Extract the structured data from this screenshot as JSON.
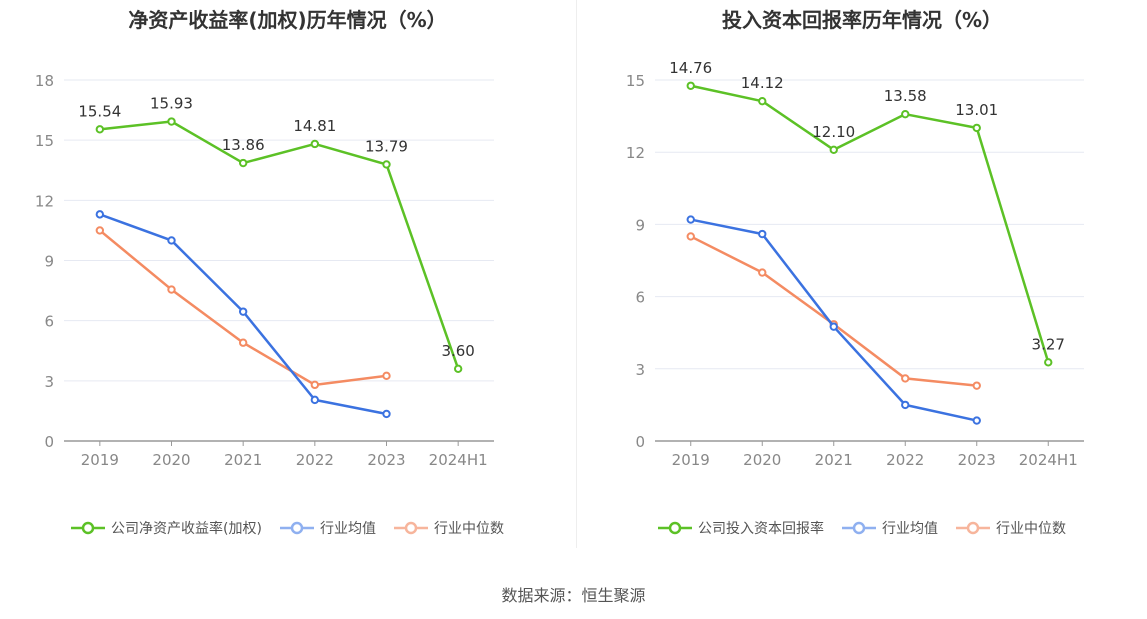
{
  "source_text": "数据来源：恒生聚源",
  "charts": [
    {
      "title": "净资产收益率(加权)历年情况（%）",
      "legend": [
        "公司净资产收益率(加权)",
        "行业均值",
        "行业中位数"
      ]
    },
    {
      "title": "投入资本回报率历年情况（%）",
      "legend": [
        "公司投入资本回报率",
        "行业均值",
        "行业中位数"
      ]
    }
  ],
  "chart_data": [
    {
      "type": "line",
      "title": "净资产收益率(加权)历年情况（%）",
      "categories": [
        "2019",
        "2020",
        "2021",
        "2022",
        "2023",
        "2024H1"
      ],
      "ylim": [
        0,
        18
      ],
      "yticks": [
        0,
        3,
        6,
        9,
        12,
        15,
        18
      ],
      "grid": true,
      "legend_position": "bottom",
      "series": [
        {
          "name": "公司净资产收益率(加权)",
          "color": "#5cc126",
          "labels": true,
          "label_texts": [
            "15.54",
            "15.93",
            "13.86",
            "14.81",
            "13.79",
            "3.60"
          ],
          "values": [
            15.54,
            15.93,
            13.86,
            14.81,
            13.79,
            3.6
          ]
        },
        {
          "name": "行业均值",
          "color": "#3b72e0",
          "values": [
            11.3,
            10.0,
            6.45,
            2.05,
            1.35,
            null
          ]
        },
        {
          "name": "行业中位数",
          "color": "#f48b62",
          "values": [
            10.5,
            7.55,
            4.9,
            2.8,
            3.25,
            null
          ]
        }
      ]
    },
    {
      "type": "line",
      "title": "投入资本回报率历年情况（%）",
      "categories": [
        "2019",
        "2020",
        "2021",
        "2022",
        "2023",
        "2024H1"
      ],
      "ylim": [
        0,
        15
      ],
      "yticks": [
        0,
        3,
        6,
        9,
        12,
        15
      ],
      "grid": true,
      "legend_position": "bottom",
      "series": [
        {
          "name": "公司投入资本回报率",
          "color": "#5cc126",
          "labels": true,
          "label_texts": [
            "14.76",
            "14.12",
            "12.10",
            "13.58",
            "13.01",
            "3.27"
          ],
          "values": [
            14.76,
            14.12,
            12.1,
            13.58,
            13.01,
            3.27
          ]
        },
        {
          "name": "行业均值",
          "color": "#3b72e0",
          "values": [
            9.2,
            8.6,
            4.75,
            1.5,
            0.85,
            null
          ]
        },
        {
          "name": "行业中位数",
          "color": "#f48b62",
          "values": [
            8.5,
            7.0,
            4.85,
            2.6,
            2.3,
            null
          ]
        }
      ]
    }
  ]
}
